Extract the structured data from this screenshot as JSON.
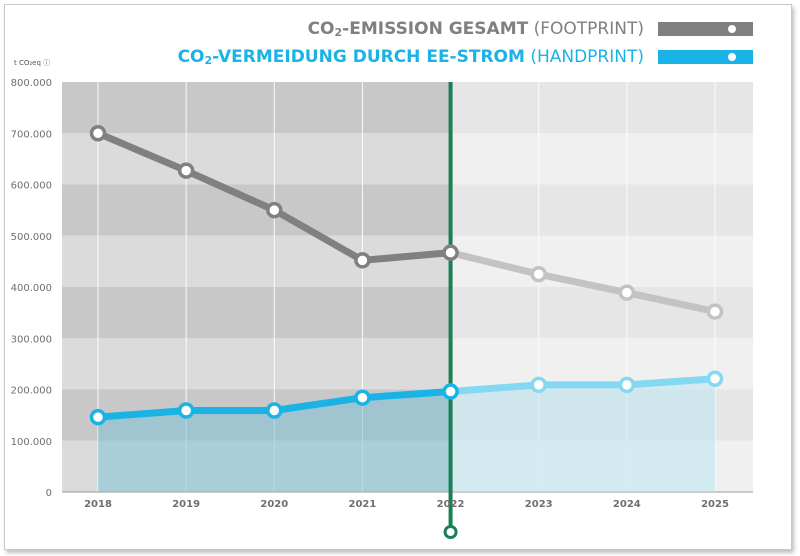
{
  "legend": {
    "footprint": {
      "co": "CO",
      "sub": "2",
      "bold": "-EMISSION GESAMT",
      "light": " (FOOTPRINT)",
      "color": "#808080"
    },
    "handprint": {
      "co": "CO",
      "sub": "2",
      "bold": "-VERMEIDUNG DURCH EE-STROM",
      "light": " (HANDPRINT)",
      "color": "#1ab3e6"
    }
  },
  "unit_label": "t CO₂eq ⓘ",
  "chart_data": {
    "type": "line",
    "x": [
      "2018",
      "2019",
      "2020",
      "2021",
      "2022",
      "2023",
      "2024",
      "2025"
    ],
    "ylim": [
      0,
      800000
    ],
    "ytick_labels": [
      "0",
      "100.000",
      "200.000",
      "300.000",
      "400.000",
      "500.000",
      "600.000",
      "700.000",
      "800.000"
    ],
    "forecast_from": "2022",
    "series": [
      {
        "key": "footprint",
        "values": [
          700000,
          627000,
          550000,
          452000,
          467000,
          425000,
          389000,
          352000
        ],
        "color": "#808080",
        "forecast_color": "#c3c3c5"
      },
      {
        "key": "handprint",
        "values": [
          146000,
          159000,
          159000,
          184000,
          196000,
          209000,
          209000,
          221000
        ],
        "color": "#1ab3e6",
        "forecast_color": "#84d8f2"
      }
    ],
    "grid": true
  }
}
